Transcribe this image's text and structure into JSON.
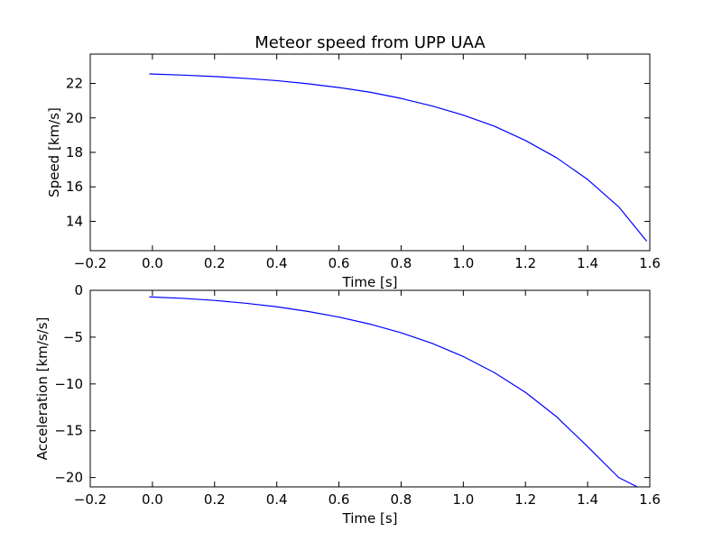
{
  "figure": {
    "background": "#ffffff",
    "line_color": "#0000ff"
  },
  "chart_data": [
    {
      "type": "line",
      "title": "Meteor speed from  UPP UAA",
      "xlabel": "Time [s]",
      "ylabel": "Speed [km/s]",
      "xlim": [
        -0.2,
        1.6
      ],
      "ylim": [
        12.3,
        23.7
      ],
      "xticks": [
        -0.2,
        0.0,
        0.2,
        0.4,
        0.6,
        0.8,
        1.0,
        1.2,
        1.4,
        1.6
      ],
      "xtick_labels": [
        "−0.2",
        "0.0",
        "0.2",
        "0.4",
        "0.6",
        "0.8",
        "1.0",
        "1.2",
        "1.4",
        "1.6"
      ],
      "yticks": [
        14,
        16,
        18,
        20,
        22
      ],
      "ytick_labels": [
        "14",
        "16",
        "18",
        "20",
        "22"
      ],
      "grid": false,
      "series": [
        {
          "color": "#0000ff",
          "x": [
            -0.01,
            0.1,
            0.2,
            0.3,
            0.4,
            0.5,
            0.6,
            0.7,
            0.8,
            0.9,
            1.0,
            1.1,
            1.2,
            1.3,
            1.4,
            1.5,
            1.59
          ],
          "y": [
            22.55,
            22.48,
            22.4,
            22.29,
            22.16,
            21.98,
            21.76,
            21.49,
            21.13,
            20.69,
            20.16,
            19.52,
            18.69,
            17.69,
            16.43,
            14.84,
            12.85
          ]
        }
      ]
    },
    {
      "type": "line",
      "title": "",
      "xlabel": "Time [s]",
      "ylabel": "Acceleration [km/s/s]",
      "xlim": [
        -0.2,
        1.6
      ],
      "ylim": [
        -21,
        0
      ],
      "xticks": [
        -0.2,
        0.0,
        0.2,
        0.4,
        0.6,
        0.8,
        1.0,
        1.2,
        1.4,
        1.6
      ],
      "xtick_labels": [
        "−0.2",
        "0.0",
        "0.2",
        "0.4",
        "0.6",
        "0.8",
        "1.0",
        "1.2",
        "1.4",
        "1.6"
      ],
      "yticks": [
        0,
        -5,
        -10,
        -15,
        -20
      ],
      "ytick_labels": [
        "0",
        "−5",
        "−10",
        "−15",
        "−20"
      ],
      "grid": false,
      "series": [
        {
          "color": "#0000ff",
          "x": [
            -0.01,
            0.1,
            0.2,
            0.3,
            0.4,
            0.5,
            0.6,
            0.7,
            0.8,
            0.9,
            1.0,
            1.1,
            1.2,
            1.3,
            1.4,
            1.5,
            1.56
          ],
          "y": [
            -0.7,
            -0.86,
            -1.08,
            -1.38,
            -1.76,
            -2.25,
            -2.86,
            -3.61,
            -4.53,
            -5.67,
            -7.07,
            -8.79,
            -10.9,
            -13.5,
            -16.7,
            -20.0,
            -21.0
          ]
        }
      ]
    }
  ]
}
